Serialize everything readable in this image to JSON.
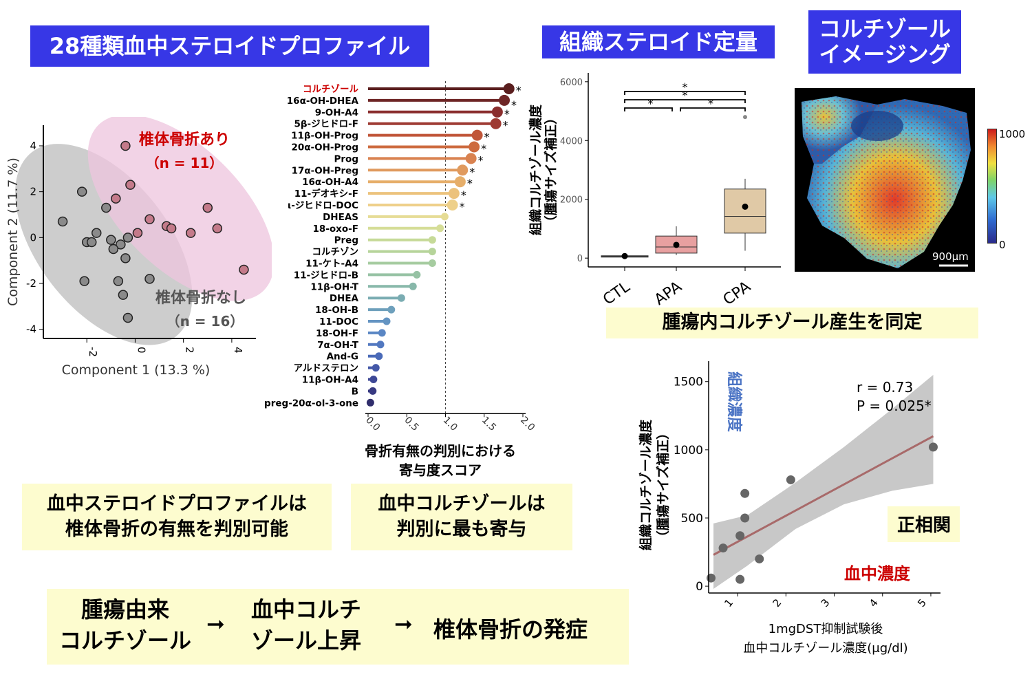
{
  "titles": {
    "steroid_profile": "28種類血中ステロイドプロファイル",
    "tissue_quant": "組織ステロイド定量",
    "imaging_line1": "コルチゾール",
    "imaging_line2": "イメージング"
  },
  "notes": {
    "profile_line1": "血中ステロイドプロファイルは",
    "profile_line2": "椎体骨折の有無を判別可能",
    "cortisol_line1": "血中コルチゾールは",
    "cortisol_line2": "判別に最も寄与",
    "tumor": "腫瘍内コルチゾール産生を同定",
    "flow_a1": "腫瘍由来",
    "flow_a2": "コルチゾール",
    "flow_b1": "血中コルチ",
    "flow_b2": "ゾール上昇",
    "flow_c": "椎体骨折の発症",
    "arrow": "➞"
  },
  "colors": {
    "title_bg": "#3737e6",
    "note_bg": "#fdfccf",
    "fracture_red": "#cc0000",
    "tissue_blue": "#4a73c4"
  },
  "chart_data": [
    {
      "type": "scatter",
      "xlabel": "Component 1 (13.3 %)",
      "ylabel": "Component 2 (11.7 %)",
      "xlim": [
        -3.8,
        5.0
      ],
      "ylim": [
        -4.4,
        4.9
      ],
      "xticks": [
        "-2",
        "0",
        "2",
        "4"
      ],
      "yticks": [
        "4",
        "2",
        "0",
        "-2",
        "-4"
      ],
      "groups": [
        {
          "label_line1": "椎体骨折あり",
          "label_line2": "（n = 11）",
          "color": "#c47a8a",
          "points": [
            [
              -0.4,
              4.0
            ],
            [
              -0.2,
              2.3
            ],
            [
              0.6,
              0.8
            ],
            [
              0.1,
              0.2
            ],
            [
              1.3,
              0.5
            ],
            [
              1.5,
              0.4
            ],
            [
              2.3,
              0.2
            ],
            [
              3.0,
              1.3
            ],
            [
              3.4,
              0.4
            ],
            [
              4.5,
              -1.4
            ],
            [
              -0.8,
              1.7
            ]
          ]
        },
        {
          "label_line1": "椎体骨折なし",
          "label_line2": "（n = 16）",
          "color": "#8a8a8a",
          "points": [
            [
              -3.0,
              0.7
            ],
            [
              -2.2,
              2.0
            ],
            [
              -2.0,
              -0.2
            ],
            [
              -1.8,
              -0.2
            ],
            [
              -1.6,
              0.2
            ],
            [
              -1.0,
              -0.1
            ],
            [
              -0.6,
              -0.3
            ],
            [
              -0.4,
              -0.9
            ],
            [
              -0.7,
              -1.9
            ],
            [
              -0.5,
              -2.5
            ],
            [
              -0.3,
              -3.5
            ],
            [
              0.6,
              -1.8
            ],
            [
              -0.9,
              -0.5
            ],
            [
              -1.2,
              1.3
            ],
            [
              -2.1,
              -1.9
            ],
            [
              -0.3,
              0.0
            ]
          ]
        }
      ]
    },
    {
      "type": "bar",
      "xlabel_line1": "骨折有無の判別における",
      "xlabel_line2": "寄与度スコア",
      "xlim": [
        0,
        2.0
      ],
      "xticks": [
        "0.0",
        "0.5",
        "1.0",
        "1.5",
        "2.0"
      ],
      "reference_line": 1.0,
      "star": "*",
      "categories": [
        "コルチゾール",
        "16α-OH-DHEA",
        "9-OH-A4",
        "5β-ジヒドロ-F",
        "11β-OH-Prog",
        "20α-OH-Prog",
        "Prog",
        "17α-OH-Preg",
        "16α-OH-A4",
        "11-デオキシ-F",
        "ι-ジヒドロ-DOC",
        "DHEAS",
        "18-oxo-F",
        "Preg",
        "コルチゾン",
        "11-ケト-A4",
        "11-ジヒドロ-B",
        "11β-OH-T",
        "DHEA",
        "18-OH-B",
        "11-DOC",
        "18-OH-F",
        "7α-OH-T",
        "And-G",
        "アルドステロン",
        "11β-OH-A4",
        "B",
        "preg-20α-ol-3-one"
      ],
      "values": [
        1.82,
        1.76,
        1.67,
        1.65,
        1.41,
        1.37,
        1.33,
        1.22,
        1.19,
        1.11,
        1.09,
        0.99,
        0.93,
        0.83,
        0.83,
        0.83,
        0.63,
        0.58,
        0.43,
        0.3,
        0.24,
        0.18,
        0.16,
        0.14,
        0.1,
        0.07,
        0.06,
        0.03
      ],
      "significant": [
        true,
        true,
        true,
        true,
        true,
        true,
        true,
        true,
        true,
        true,
        true,
        false,
        false,
        false,
        false,
        false,
        false,
        false,
        false,
        false,
        false,
        false,
        false,
        false,
        false,
        false,
        false,
        false
      ]
    },
    {
      "type": "box",
      "ylabel_line1": "組織コルチゾール濃度",
      "ylabel_line2": "（腫瘍サイズ補正）",
      "ylim": [
        -300,
        6300
      ],
      "yticks": [
        "0",
        "2000",
        "4000",
        "6000"
      ],
      "star": "*",
      "categories": [
        "CTL",
        "APA",
        "CPA"
      ],
      "boxes": [
        {
          "q1": 40,
          "median": 60,
          "q3": 80,
          "whisker_low": 20,
          "whisker_high": 110,
          "mean": 70,
          "color": "#777777"
        },
        {
          "q1": 170,
          "median": 380,
          "q3": 750,
          "whisker_low": 100,
          "whisker_high": 1080,
          "mean": 450,
          "color": "#e8a0a0"
        },
        {
          "q1": 850,
          "median": 1420,
          "q3": 2350,
          "whisker_low": 250,
          "whisker_high": 2700,
          "mean": 1750,
          "outlier": 4800,
          "color": "#e0c9a6"
        }
      ]
    },
    {
      "type": "heatmap",
      "colorbar_max": "1000",
      "colorbar_min": "0",
      "scale_bar": "900μm"
    },
    {
      "type": "scatter",
      "xlabel_line1": "1mgDST抑制試験後",
      "xlabel_line2": "血中コルチゾール濃度(μg/dl)",
      "ylabel_line1": "組織コルチゾール濃度",
      "ylabel_line2": "（腫瘍サイズ補正）",
      "xlim": [
        0.4,
        5.2
      ],
      "ylim": [
        -50,
        1650
      ],
      "xticks": [
        "1",
        "2",
        "3",
        "4",
        "5"
      ],
      "yticks": [
        "0",
        "500",
        "1000",
        "1500"
      ],
      "points": [
        [
          0.45,
          60
        ],
        [
          0.7,
          280
        ],
        [
          1.05,
          370
        ],
        [
          1.15,
          500
        ],
        [
          1.15,
          680
        ],
        [
          1.05,
          50
        ],
        [
          1.45,
          200
        ],
        [
          2.1,
          780
        ],
        [
          5.05,
          1020
        ]
      ],
      "fit": {
        "x0": 0.5,
        "y0": 230,
        "x1": 5.05,
        "y1": 1100
      },
      "annotations": {
        "r": "r  = 0.73",
        "p": "P  = 0.025*",
        "tissue_label": "組織濃度",
        "blood_label": "血中濃度",
        "positive": "正相関"
      }
    }
  ]
}
